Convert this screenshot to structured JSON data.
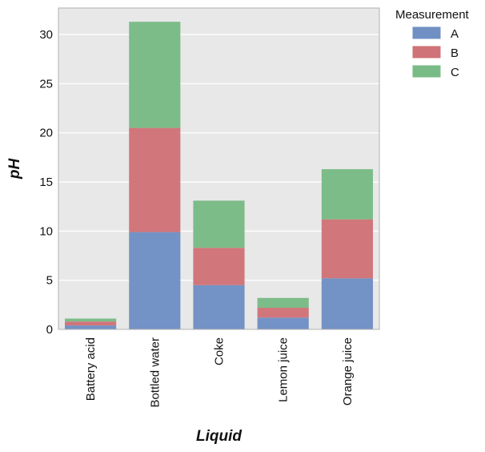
{
  "chart_data": {
    "type": "bar",
    "stacked": true,
    "xlabel": "Liquid",
    "ylabel": "pH",
    "ylim": [
      0,
      32.7
    ],
    "yticks": [
      0,
      5,
      10,
      15,
      20,
      25,
      30
    ],
    "grid": true,
    "legend_title": "Measurement",
    "legend_position": "outside-top-right",
    "categories": [
      "Battery acid",
      "Bottled water",
      "Coke",
      "Lemon juice",
      "Orange juice"
    ],
    "series": [
      {
        "name": "A",
        "color": "#7090c4",
        "values": [
          0.4,
          9.9,
          4.5,
          1.2,
          5.2
        ]
      },
      {
        "name": "B",
        "color": "#d07378",
        "values": [
          0.4,
          10.6,
          3.8,
          1.0,
          6.0
        ]
      },
      {
        "name": "C",
        "color": "#79bb86",
        "values": [
          0.3,
          10.8,
          4.8,
          1.0,
          5.1
        ]
      }
    ]
  }
}
